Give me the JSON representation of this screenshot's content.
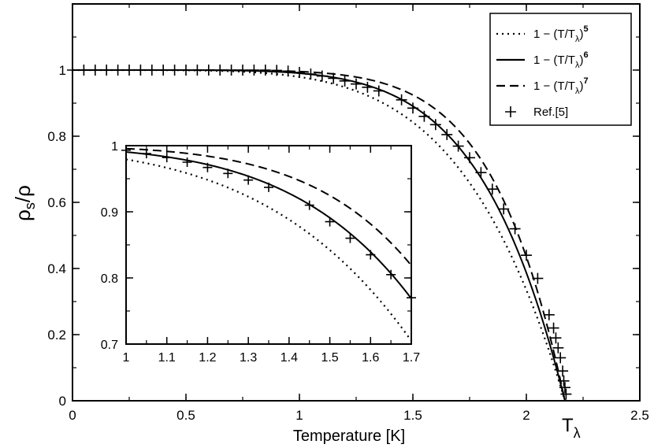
{
  "chart_data": {
    "type": "line",
    "xlabel": "Temperature [K]",
    "ylabel": "ρs/ρ",
    "t_lambda_label": "Tλ",
    "xlim": [
      0,
      2.5
    ],
    "ylim": [
      0,
      1.2
    ],
    "x_ticks": [
      "0",
      "0.5",
      "1",
      "1.5",
      "2",
      "2.5"
    ],
    "y_ticks": [
      "0",
      "0.2",
      "0.4",
      "0.6",
      "0.8",
      "1"
    ],
    "t_lambda": 2.17,
    "legend_position": "top-right",
    "series": [
      {
        "name": "1 − (T/Tλ)^5",
        "label_main": "1 −  (T/T",
        "label_sub": "λ",
        "label_close": ")",
        "label_sup": "5",
        "exponent": 5,
        "style": "dotted"
      },
      {
        "name": "1 − (T/Tλ)^6",
        "label_main": "1 −  (T/T",
        "label_sub": "λ",
        "label_close": ")",
        "label_sup": "6",
        "exponent": 6,
        "style": "solid"
      },
      {
        "name": "1 − (T/Tλ)^7",
        "label_main": "1 −  (T/T",
        "label_sub": "λ",
        "label_close": ")",
        "label_sup": "7",
        "exponent": 7,
        "style": "dashed"
      },
      {
        "name": "Ref.[5]",
        "label_main": "Ref.[5]",
        "style": "plus",
        "x": [
          0.0,
          0.05,
          0.1,
          0.15,
          0.2,
          0.25,
          0.3,
          0.35,
          0.4,
          0.45,
          0.5,
          0.55,
          0.6,
          0.65,
          0.7,
          0.75,
          0.8,
          0.85,
          0.9,
          0.95,
          1.0,
          1.05,
          1.1,
          1.15,
          1.2,
          1.25,
          1.3,
          1.35,
          1.45,
          1.5,
          1.55,
          1.6,
          1.65,
          1.7,
          1.75,
          1.8,
          1.85,
          1.9,
          1.95,
          2.0,
          2.05,
          2.1,
          2.12,
          2.13,
          2.14,
          2.15,
          2.16,
          2.165,
          2.17,
          2.175
        ],
        "y": [
          1.0,
          1.0,
          1.0,
          1.0,
          1.0,
          1.0,
          1.0,
          1.0,
          1.0,
          1.0,
          1.0,
          1.0,
          1.0,
          1.0,
          1.0,
          1.0,
          1.0,
          1.0,
          0.999,
          0.997,
          0.993,
          0.988,
          0.982,
          0.975,
          0.967,
          0.958,
          0.948,
          0.937,
          0.91,
          0.885,
          0.86,
          0.835,
          0.805,
          0.77,
          0.735,
          0.69,
          0.64,
          0.58,
          0.52,
          0.44,
          0.37,
          0.26,
          0.22,
          0.19,
          0.16,
          0.13,
          0.09,
          0.06,
          0.04,
          0.02
        ]
      }
    ],
    "inset": {
      "xlim": [
        1,
        1.7
      ],
      "ylim": [
        0.7,
        1.0
      ],
      "x_ticks": [
        "1",
        "1.1",
        "1.2",
        "1.3",
        "1.4",
        "1.5",
        "1.6",
        "1.7"
      ],
      "y_ticks": [
        "0.7",
        "0.8",
        "0.9",
        "1"
      ]
    }
  }
}
